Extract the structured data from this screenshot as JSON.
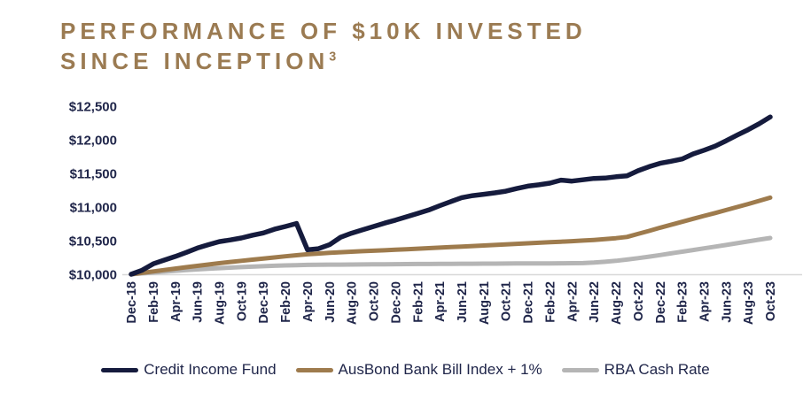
{
  "title": {
    "line1": "PERFORMANCE OF $10K INVESTED",
    "line2": "SINCE INCEPTION",
    "footnote_marker": "3"
  },
  "colors": {
    "title": "#9B7B52",
    "axis_text": "#20264A",
    "axis_line": "#D8D8D8",
    "background": "#FFFFFF"
  },
  "chart_data": {
    "type": "line",
    "title": "PERFORMANCE OF $10K INVESTED SINCE INCEPTION",
    "xlabel": "",
    "ylabel": "",
    "ylim": [
      10000,
      12500
    ],
    "grid": false,
    "legend_position": "bottom",
    "y_ticks": [
      {
        "value": 10000,
        "label": "$10,000"
      },
      {
        "value": 10500,
        "label": "$10,500"
      },
      {
        "value": 11000,
        "label": "$11,000"
      },
      {
        "value": 11500,
        "label": "$11,500"
      },
      {
        "value": 12000,
        "label": "$12,000"
      },
      {
        "value": 12500,
        "label": "$12,500"
      }
    ],
    "x_tick_labels": [
      "Dec-18",
      "Feb-19",
      "Apr-19",
      "Jun-19",
      "Aug-19",
      "Oct-19",
      "Dec-19",
      "Feb-20",
      "Apr-20",
      "Jun-20",
      "Aug-20",
      "Oct-20",
      "Dec-20",
      "Feb-21",
      "Apr-21",
      "Jun-21",
      "Aug-21",
      "Oct-21",
      "Dec-21",
      "Feb-22",
      "Apr-22",
      "Jun-22",
      "Aug-22",
      "Oct-22",
      "Dec-22",
      "Feb-23",
      "Apr-23",
      "Jun-23",
      "Aug-23",
      "Oct-23"
    ],
    "x": [
      "Dec-18",
      "Jan-19",
      "Feb-19",
      "Mar-19",
      "Apr-19",
      "May-19",
      "Jun-19",
      "Jul-19",
      "Aug-19",
      "Sep-19",
      "Oct-19",
      "Nov-19",
      "Dec-19",
      "Jan-20",
      "Feb-20",
      "Mar-20",
      "Apr-20",
      "May-20",
      "Jun-20",
      "Jul-20",
      "Aug-20",
      "Sep-20",
      "Oct-20",
      "Nov-20",
      "Dec-20",
      "Jan-21",
      "Feb-21",
      "Mar-21",
      "Apr-21",
      "May-21",
      "Jun-21",
      "Jul-21",
      "Aug-21",
      "Sep-21",
      "Oct-21",
      "Nov-21",
      "Dec-21",
      "Jan-22",
      "Feb-22",
      "Mar-22",
      "Apr-22",
      "May-22",
      "Jun-22",
      "Jul-22",
      "Aug-22",
      "Sep-22",
      "Oct-22",
      "Nov-22",
      "Dec-22",
      "Jan-23",
      "Feb-23",
      "Mar-23",
      "Apr-23",
      "May-23",
      "Jun-23",
      "Jul-23",
      "Aug-23",
      "Sep-23",
      "Oct-23"
    ],
    "series": [
      {
        "name": "RBA Cash Rate",
        "color": "#B5B5B5",
        "stroke_width": 5,
        "values": [
          10000,
          10013,
          10026,
          10039,
          10051,
          10062,
          10072,
          10082,
          10091,
          10099,
          10106,
          10113,
          10120,
          10126,
          10131,
          10136,
          10139,
          10141,
          10143,
          10144,
          10145,
          10146,
          10147,
          10148,
          10150,
          10151,
          10152,
          10153,
          10154,
          10155,
          10156,
          10157,
          10158,
          10158,
          10159,
          10160,
          10160,
          10161,
          10162,
          10163,
          10164,
          10166,
          10174,
          10186,
          10200,
          10218,
          10240,
          10262,
          10285,
          10310,
          10335,
          10360,
          10385,
          10410,
          10435,
          10462,
          10488,
          10514,
          10540
        ]
      },
      {
        "name": "AusBond Bank Bill Index + 1%",
        "color": "#9E7B4D",
        "stroke_width": 5,
        "values": [
          10000,
          10021,
          10042,
          10063,
          10084,
          10105,
          10125,
          10145,
          10165,
          10183,
          10200,
          10217,
          10233,
          10250,
          10267,
          10283,
          10297,
          10308,
          10318,
          10327,
          10335,
          10343,
          10350,
          10357,
          10364,
          10372,
          10380,
          10388,
          10396,
          10404,
          10412,
          10420,
          10428,
          10436,
          10444,
          10452,
          10460,
          10468,
          10476,
          10484,
          10492,
          10501,
          10511,
          10523,
          10537,
          10555,
          10600,
          10645,
          10692,
          10735,
          10780,
          10825,
          10868,
          10910,
          10955,
          11000,
          11045,
          11092,
          11140
        ]
      },
      {
        "name": "Credit Income Fund",
        "color": "#151B3D",
        "stroke_width": 5.5,
        "values": [
          10000,
          10060,
          10155,
          10210,
          10265,
          10325,
          10390,
          10440,
          10485,
          10510,
          10540,
          10580,
          10615,
          10670,
          10710,
          10755,
          10365,
          10380,
          10440,
          10550,
          10610,
          10660,
          10710,
          10760,
          10805,
          10855,
          10905,
          10955,
          11020,
          11080,
          11140,
          11170,
          11190,
          11210,
          11235,
          11275,
          11310,
          11330,
          11355,
          11400,
          11385,
          11405,
          11425,
          11430,
          11450,
          11465,
          11540,
          11600,
          11650,
          11680,
          11715,
          11790,
          11845,
          11905,
          11985,
          12070,
          12150,
          12240,
          12340
        ]
      }
    ],
    "legend_order": [
      "Credit Income Fund",
      "AusBond Bank Bill Index + 1%",
      "RBA Cash Rate"
    ]
  }
}
